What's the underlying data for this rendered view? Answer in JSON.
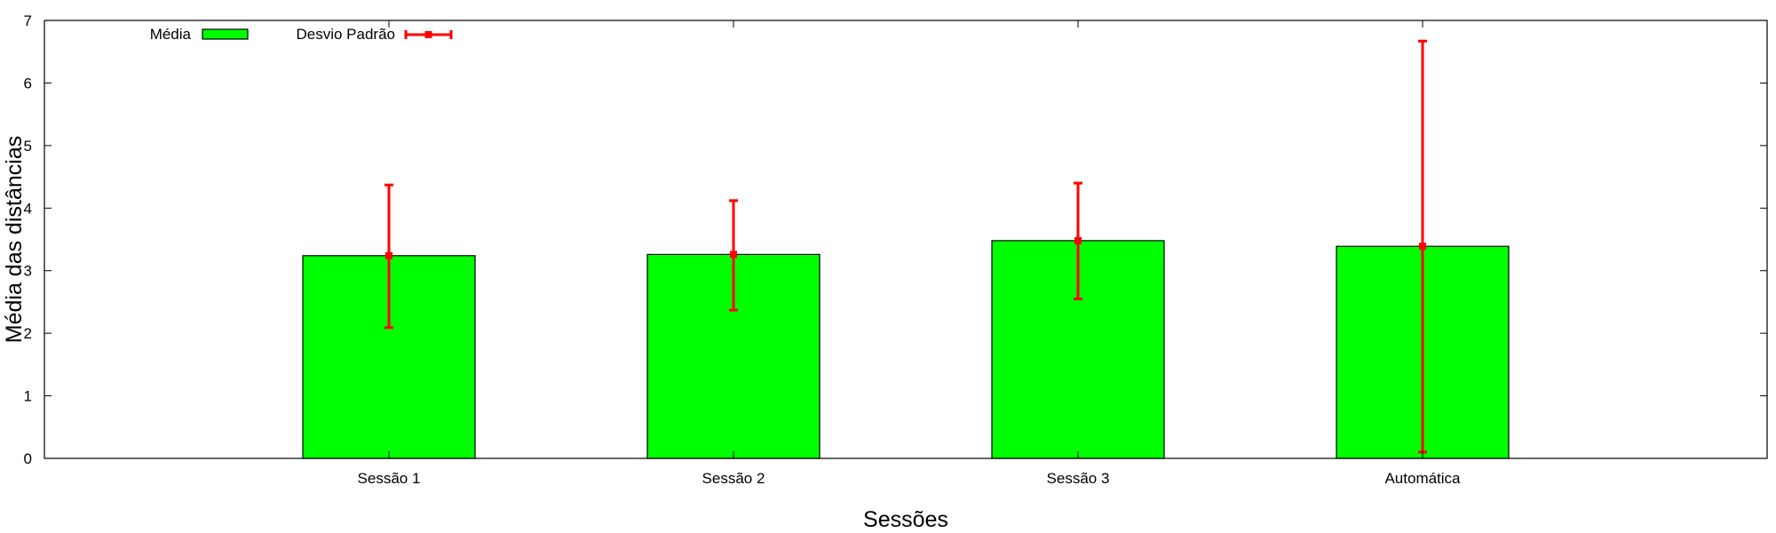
{
  "chart_data": {
    "type": "bar",
    "title": "",
    "xlabel": "Sessões",
    "ylabel": "Média das distâncias",
    "categories": [
      "Sessão 1",
      "Sessão 2",
      "Sessão 3",
      "Automática"
    ],
    "series": [
      {
        "name": "Média",
        "values": [
          3.24,
          3.26,
          3.48,
          3.39
        ]
      }
    ],
    "error_bars": {
      "name": "Desvio Padrão",
      "low": [
        2.09,
        2.37,
        2.55,
        0.1
      ],
      "high": [
        4.37,
        4.12,
        4.4,
        6.67
      ]
    },
    "ylim": [
      0,
      7
    ],
    "yticks": [
      0,
      1,
      2,
      3,
      4,
      5,
      6,
      7
    ],
    "grid": false,
    "legend_position": "top-left",
    "colors": {
      "bar_fill": "#00ff00",
      "bar_stroke": "#000000",
      "error_bar": "#ff0000"
    }
  }
}
